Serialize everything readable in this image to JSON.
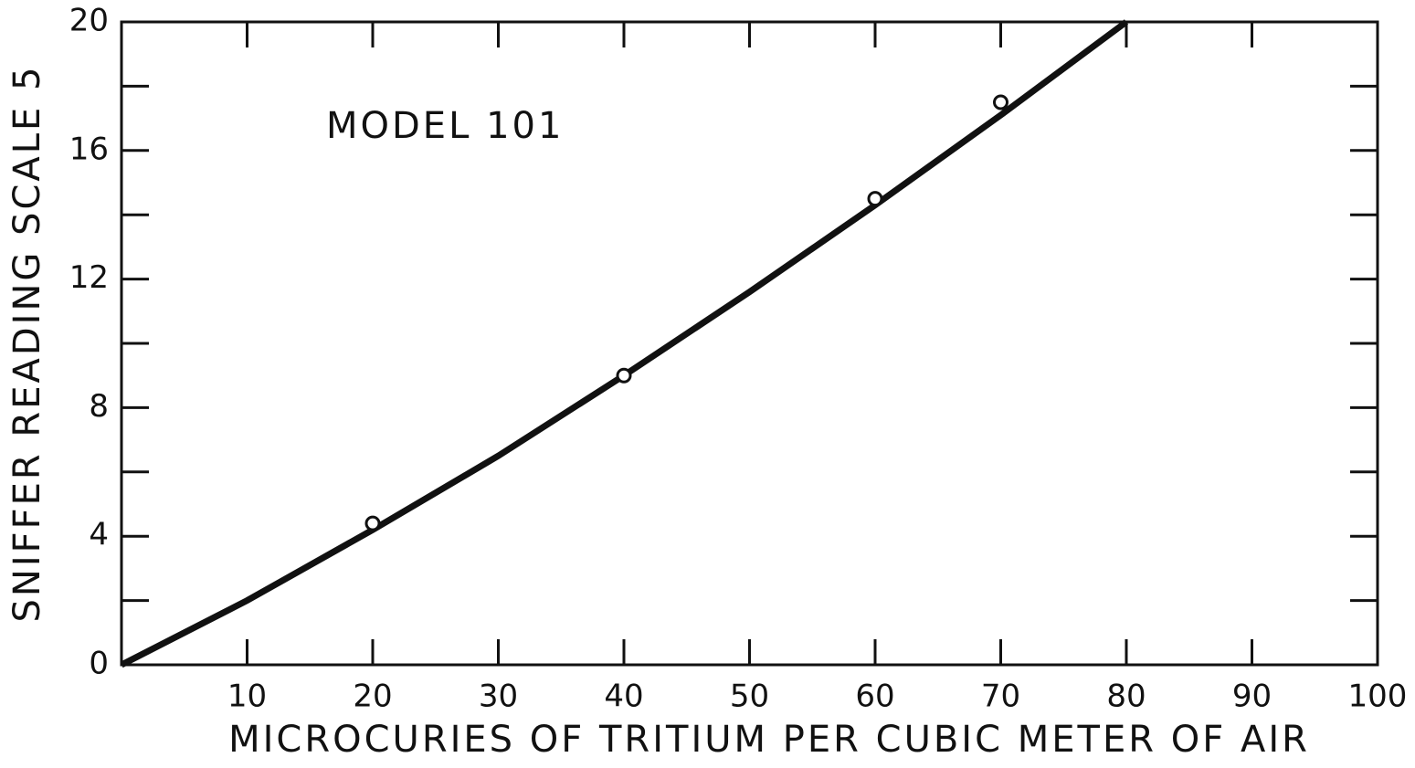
{
  "chart_data": {
    "type": "line",
    "annotation": "MODEL 101",
    "xlabel": "MICROCURIES OF TRITIUM PER CUBIC METER OF AIR",
    "ylabel": "SNIFFER READING SCALE 5",
    "xlim": [
      0,
      100
    ],
    "xticks": [
      10,
      20,
      30,
      40,
      50,
      60,
      70,
      80,
      90,
      100
    ],
    "ylim": [
      0,
      20
    ],
    "yticks": [
      0,
      4,
      8,
      12,
      16,
      20
    ],
    "yminorticks": [
      2,
      6,
      10,
      14,
      18
    ],
    "color": "#111111",
    "curve": {
      "x": [
        0,
        10,
        20,
        30,
        40,
        50,
        60,
        70,
        80
      ],
      "values": [
        0,
        2.0,
        4.2,
        6.5,
        9.0,
        11.6,
        14.3,
        17.1,
        20
      ]
    },
    "points": {
      "x": [
        20,
        40,
        60,
        70
      ],
      "values": [
        4.4,
        9.0,
        14.5,
        17.5
      ]
    }
  }
}
